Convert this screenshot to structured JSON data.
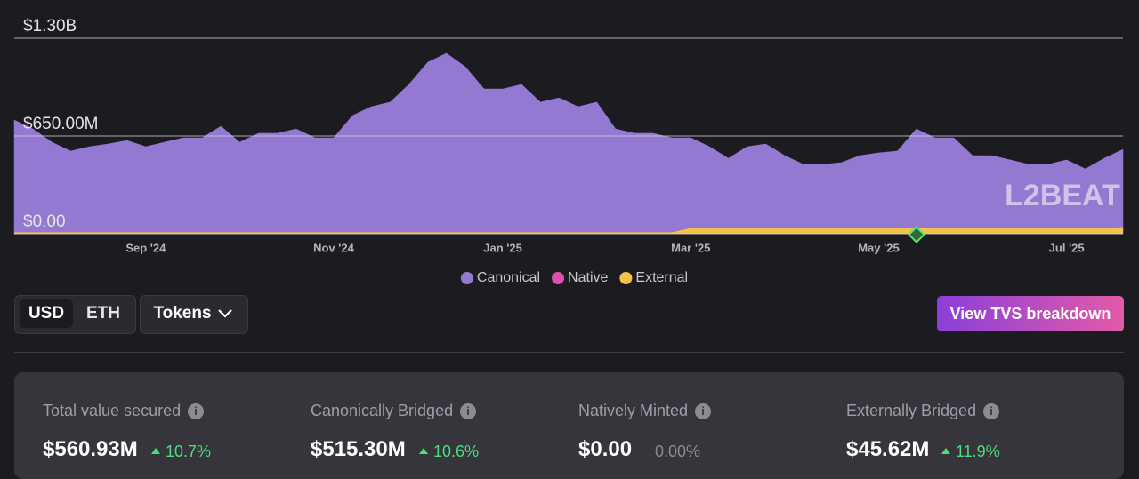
{
  "chart_data": {
    "type": "area",
    "stacked": true,
    "categories": [
      null,
      null,
      null,
      null,
      null,
      null,
      null,
      "Sep '24",
      null,
      null,
      null,
      null,
      null,
      null,
      null,
      null,
      null,
      "Nov '24",
      null,
      null,
      null,
      null,
      null,
      null,
      null,
      null,
      "Jan '25",
      null,
      null,
      null,
      null,
      null,
      null,
      null,
      null,
      null,
      "Mar '25",
      null,
      null,
      null,
      null,
      null,
      null,
      null,
      null,
      null,
      "May '25",
      null,
      null,
      null,
      null,
      null,
      null,
      null,
      null,
      null,
      "Jul '25",
      null,
      null,
      null
    ],
    "series": [
      {
        "name": "Canonical",
        "color": "#9379d1",
        "values": [
          744000000,
          685000000,
          597000000,
          538000000,
          567000000,
          585000000,
          608000000,
          567000000,
          597000000,
          626000000,
          626000000,
          703000000,
          597000000,
          656000000,
          656000000,
          685000000,
          626000000,
          626000000,
          774000000,
          833000000,
          863000000,
          981000000,
          1128000000,
          1188000000,
          1099000000,
          951000000,
          951000000,
          981000000,
          863000000,
          892000000,
          833000000,
          863000000,
          685000000,
          656000000,
          656000000,
          626000000,
          598000000,
          539000000,
          462000000,
          539000000,
          557000000,
          480000000,
          421000000,
          421000000,
          433000000,
          480000000,
          498000000,
          510000000,
          657000000,
          598000000,
          598000000,
          480000000,
          480000000,
          451000000,
          421000000,
          421000000,
          451000000,
          391000000,
          462000000,
          515000000
        ]
      },
      {
        "name": "Native",
        "color": "#e04fae",
        "values": [
          0,
          0,
          0,
          0,
          0,
          0,
          0,
          0,
          0,
          0,
          0,
          0,
          0,
          0,
          0,
          0,
          0,
          0,
          0,
          0,
          0,
          0,
          0,
          0,
          0,
          0,
          0,
          0,
          0,
          0,
          0,
          0,
          0,
          0,
          0,
          0,
          0,
          0,
          0,
          0,
          0,
          0,
          0,
          0,
          0,
          0,
          0,
          0,
          0,
          0,
          0,
          0,
          0,
          0,
          0,
          0,
          0,
          0,
          0,
          0
        ]
      },
      {
        "name": "External",
        "color": "#f2c14e",
        "values": [
          12000000,
          12000000,
          12000000,
          12000000,
          12000000,
          12000000,
          12000000,
          12000000,
          12000000,
          12000000,
          12000000,
          12000000,
          12000000,
          12000000,
          12000000,
          12000000,
          12000000,
          12000000,
          12000000,
          12000000,
          12000000,
          12000000,
          12000000,
          12000000,
          12000000,
          12000000,
          12000000,
          12000000,
          12000000,
          12000000,
          12000000,
          12000000,
          12000000,
          12000000,
          12000000,
          12000000,
          40000000,
          40000000,
          40000000,
          40000000,
          40000000,
          40000000,
          40000000,
          40000000,
          40000000,
          40000000,
          40000000,
          40000000,
          40000000,
          40000000,
          40000000,
          40000000,
          40000000,
          40000000,
          40000000,
          40000000,
          40000000,
          40000000,
          40000000,
          46000000
        ]
      }
    ],
    "ylim": [
      0,
      1300000000
    ],
    "yticks": [
      {
        "value": 0,
        "label": "$0.00"
      },
      {
        "value": 650000000,
        "label": "$650.00M"
      },
      {
        "value": 1300000000,
        "label": "$1.30B"
      }
    ],
    "grid": true,
    "watermark": "L2BEAT"
  },
  "controls": {
    "units": [
      "USD",
      "ETH"
    ],
    "tokens": "Tokens",
    "breakdown_button": "View TVS breakdown"
  },
  "stats": [
    {
      "label": "Total value secured",
      "value": "$560.93M",
      "change": "10.7%"
    },
    {
      "label": "Canonically Bridged",
      "value": "$515.30M",
      "change": "10.6%"
    },
    {
      "label": "Natively Minted",
      "value": "$0.00",
      "change": "0.00%"
    },
    {
      "label": "Externally Bridged",
      "value": "$45.62M",
      "change": "11.9%"
    }
  ]
}
